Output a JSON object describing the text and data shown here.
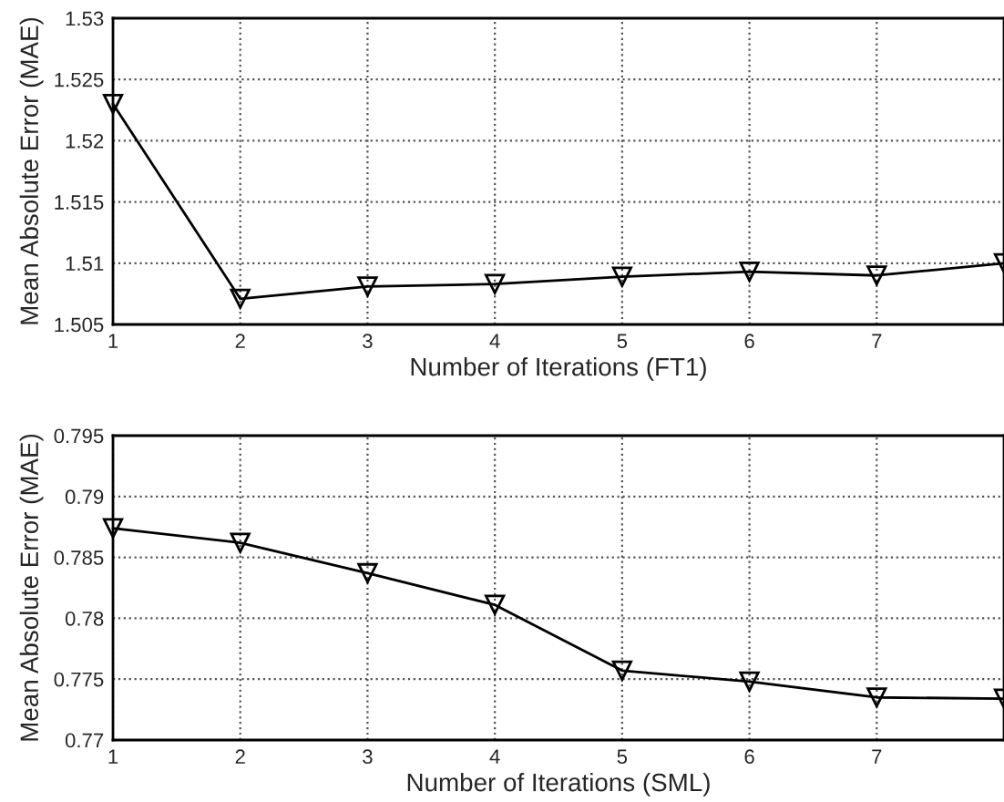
{
  "chart_data": [
    {
      "type": "line",
      "xlabel": "Number of Iterations (FT1)",
      "ylabel": "Mean Absolute Error (MAE)",
      "x": [
        1,
        2,
        3,
        4,
        5,
        6,
        7,
        8
      ],
      "series": [
        {
          "color": "#000000",
          "values": [
            1.523,
            1.5071,
            1.5081,
            1.5083,
            1.5089,
            1.5093,
            1.509,
            1.51
          ]
        }
      ],
      "xlim": [
        1,
        8
      ],
      "xticks": [
        1,
        2,
        3,
        4,
        5,
        6,
        7
      ],
      "ylim": [
        1.505,
        1.53
      ],
      "yticks": [
        1.505,
        1.51,
        1.515,
        1.52,
        1.525,
        1.53
      ],
      "grid": true,
      "marker": "triangle",
      "line_style": "solid"
    },
    {
      "type": "line",
      "xlabel": "Number of Iterations (SML)",
      "ylabel": "Mean Absolute Error (MAE)",
      "x": [
        1,
        2,
        3,
        4,
        5,
        6,
        7,
        8
      ],
      "series": [
        {
          "color": "#000000",
          "values": [
            0.7874,
            0.7862,
            0.7837,
            0.7811,
            0.7757,
            0.7748,
            0.7735,
            0.7734
          ]
        }
      ],
      "xlim": [
        1,
        8
      ],
      "xticks": [
        1,
        2,
        3,
        4,
        5,
        6,
        7
      ],
      "ylim": [
        0.77,
        0.795
      ],
      "yticks": [
        0.77,
        0.775,
        0.78,
        0.785,
        0.79,
        0.795
      ],
      "grid": true,
      "marker": "triangle",
      "line_style": "solid"
    }
  ]
}
